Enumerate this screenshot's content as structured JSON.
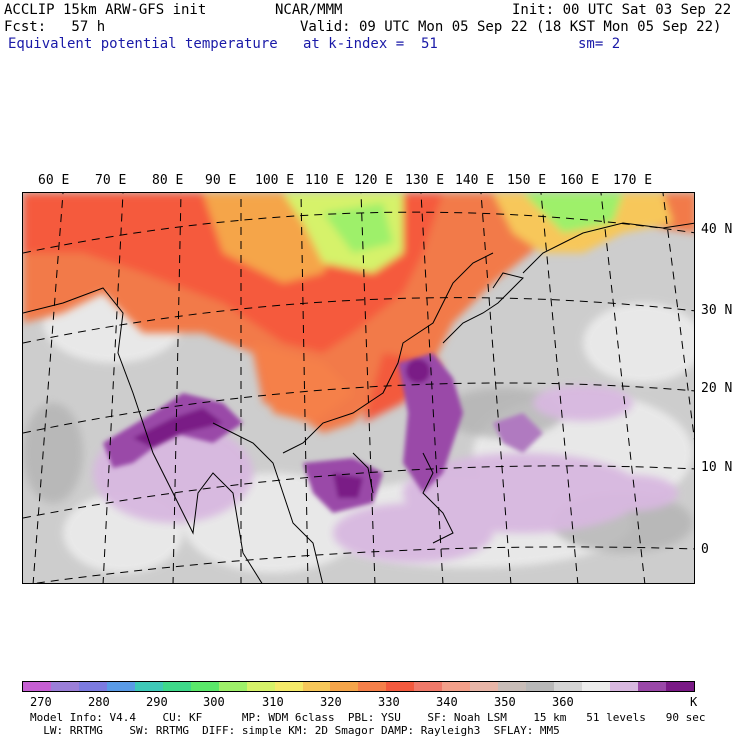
{
  "header": {
    "model_title": "ACCLIP 15km ARW-GFS init",
    "forecast_line": "Fcst:   57 h",
    "variable": "Equivalent potential temperature",
    "center": "NCAR/MMM",
    "init": "Init: 00 UTC Sat 03 Sep 22",
    "valid": "Valid: 09 UTC Mon 05 Sep 22 (18 KST Mon 05 Sep 22)",
    "level": "at k-index =  51",
    "smoothing": "sm= 2"
  },
  "map": {
    "longitude_labels": [
      "60 E",
      "70 E",
      "80 E",
      "90 E",
      "100 E",
      "110 E",
      "120 E",
      "130 E",
      "140 E",
      "150 E",
      "160 E",
      "170 E"
    ],
    "latitude_labels": [
      "40 N",
      "30 N",
      "20 N",
      "10 N",
      "0"
    ]
  },
  "colorbar": {
    "unit": "K",
    "labels": [
      "270",
      "280",
      "290",
      "300",
      "310",
      "320",
      "330",
      "340",
      "350",
      "360"
    ],
    "colors": [
      "#c65fd3",
      "#9b7fd8",
      "#7c7be0",
      "#5a9be6",
      "#3ec9b8",
      "#3ed98a",
      "#5ae86a",
      "#9ef06a",
      "#d6f26a",
      "#f5ea6a",
      "#f7c75a",
      "#f5a54a",
      "#f5804a",
      "#f35a3e",
      "#f07a6a",
      "#f3a08a",
      "#e8b6a8",
      "#c8bdb8",
      "#b8b8b8",
      "#d4d4d4",
      "#ececec",
      "#d8b8e0",
      "#9a48a8",
      "#7a1a86"
    ]
  },
  "footer": {
    "line1": "Model Info: V4.4    CU: KF      MP: WDM 6class  PBL: YSU    SF: Noah LSM    15 km   51 levels   90 sec",
    "line2": "  LW: RRTMG    SW: RRTMG  DIFF: simple KM: 2D Smagor DAMP: Rayleigh3  SFLAY: MM5"
  }
}
